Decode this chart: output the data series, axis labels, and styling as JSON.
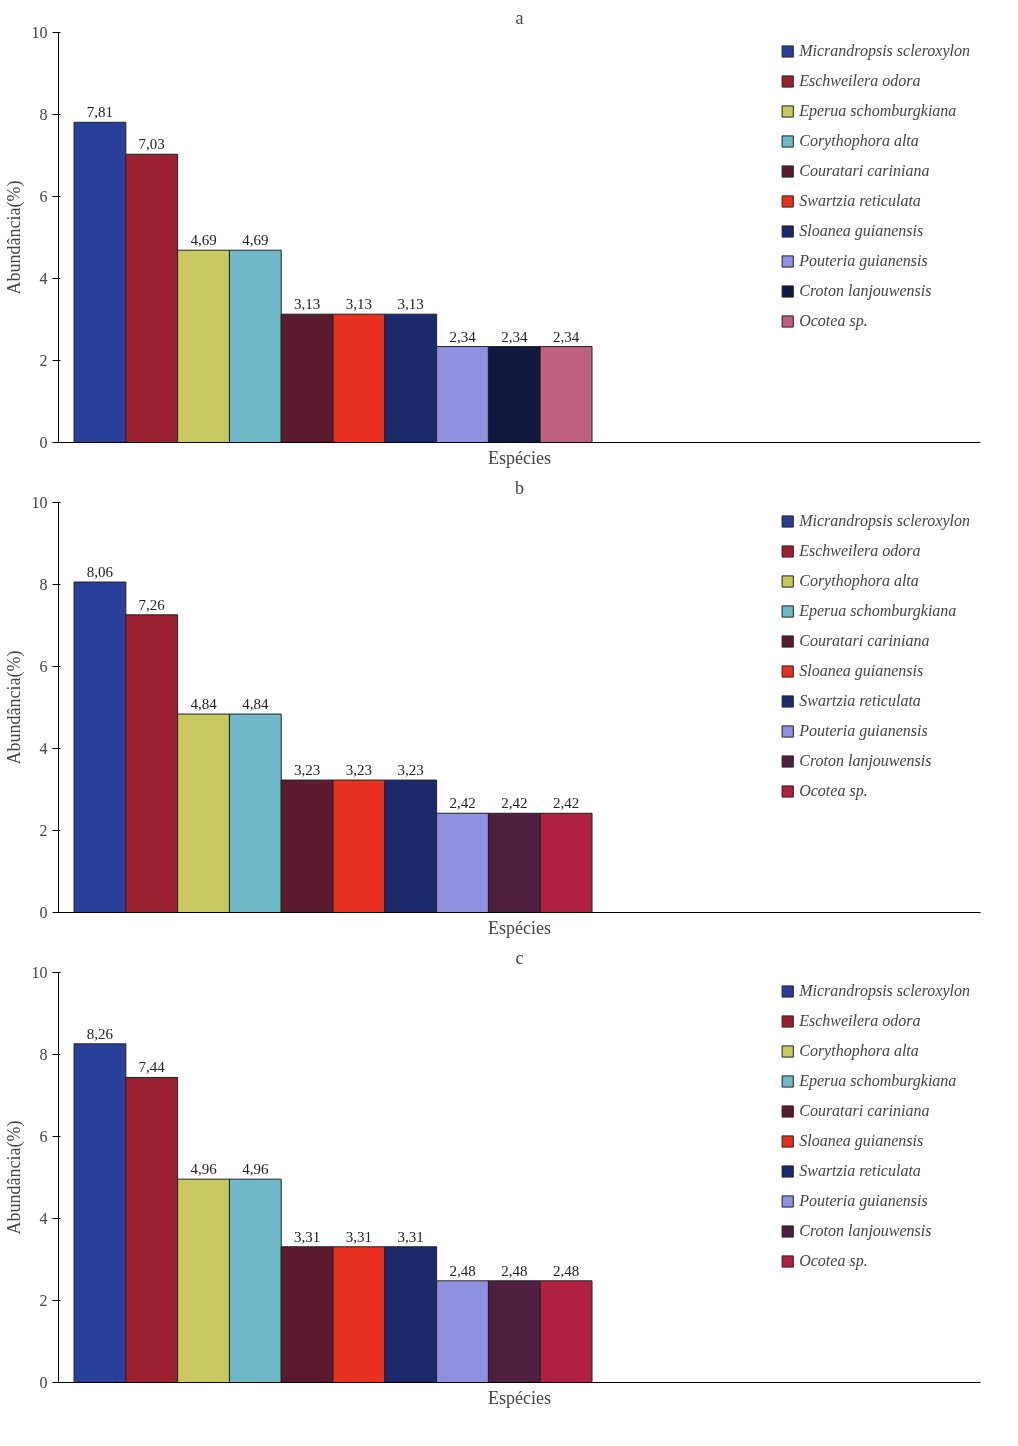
{
  "chart_data": [
    {
      "type": "bar",
      "title": "a",
      "xlabel": "Espécies",
      "ylabel": "Abundância(%)",
      "categories": [
        null
      ],
      "ylim": [
        0,
        10
      ],
      "yticks": [
        0,
        2,
        4,
        6,
        8,
        10
      ],
      "grid": false,
      "legend": "right",
      "series": [
        {
          "name": "Micrandropsis scleroxylon",
          "color": "#2a3f9a",
          "values": [
            7.81
          ],
          "value_labels": [
            "7,81"
          ]
        },
        {
          "name": "Eschweilera odora",
          "color": "#9a2030",
          "values": [
            7.03
          ],
          "value_labels": [
            "7,03"
          ]
        },
        {
          "name": "Eperua schomburgkiana",
          "color": "#c8c860",
          "values": [
            4.69
          ],
          "value_labels": [
            "4,69"
          ]
        },
        {
          "name": "Corythophora alta",
          "color": "#70b8c8",
          "values": [
            4.69
          ],
          "value_labels": [
            "4,69"
          ]
        },
        {
          "name": "Couratari cariniana",
          "color": "#5a1a30",
          "values": [
            3.13
          ],
          "value_labels": [
            "3,13"
          ]
        },
        {
          "name": "Swartzia reticulata",
          "color": "#e83020",
          "values": [
            3.13
          ],
          "value_labels": [
            "3,13"
          ]
        },
        {
          "name": "Sloanea guianensis",
          "color": "#1a2a6a",
          "values": [
            3.13
          ],
          "value_labels": [
            "3,13"
          ]
        },
        {
          "name": "Pouteria guianensis",
          "color": "#9090e0",
          "values": [
            2.34
          ],
          "value_labels": [
            "2,34"
          ]
        },
        {
          "name": "Croton lanjouwensis",
          "color": "#101840",
          "values": [
            2.34
          ],
          "value_labels": [
            "2,34"
          ]
        },
        {
          "name": "Ocotea sp.",
          "color": "#c06080",
          "values": [
            2.34
          ],
          "value_labels": [
            "2,34"
          ]
        }
      ]
    },
    {
      "type": "bar",
      "title": "b",
      "xlabel": "Espécies",
      "ylabel": "Abundância(%)",
      "categories": [
        null
      ],
      "ylim": [
        0,
        10
      ],
      "yticks": [
        0,
        2,
        4,
        6,
        8,
        10
      ],
      "grid": false,
      "legend": "right",
      "series": [
        {
          "name": "Micrandropsis scleroxylon",
          "color": "#2a3f9a",
          "values": [
            8.06
          ],
          "value_labels": [
            "8,06"
          ]
        },
        {
          "name": "Eschweilera odora",
          "color": "#9a2030",
          "values": [
            7.26
          ],
          "value_labels": [
            "7,26"
          ]
        },
        {
          "name": "Corythophora alta",
          "color": "#c8c860",
          "values": [
            4.84
          ],
          "value_labels": [
            "4,84"
          ]
        },
        {
          "name": "Eperua schomburgkiana",
          "color": "#70b8c8",
          "values": [
            4.84
          ],
          "value_labels": [
            "4,84"
          ]
        },
        {
          "name": "Couratari cariniana",
          "color": "#5a1a30",
          "values": [
            3.23
          ],
          "value_labels": [
            "3,23"
          ]
        },
        {
          "name": "Sloanea guianensis",
          "color": "#e83020",
          "values": [
            3.23
          ],
          "value_labels": [
            "3,23"
          ]
        },
        {
          "name": "Swartzia reticulata",
          "color": "#1a2a6a",
          "values": [
            3.23
          ],
          "value_labels": [
            "3,23"
          ]
        },
        {
          "name": "Pouteria guianensis",
          "color": "#9090e0",
          "values": [
            2.42
          ],
          "value_labels": [
            "2,42"
          ]
        },
        {
          "name": "Croton lanjouwensis",
          "color": "#502040",
          "values": [
            2.42
          ],
          "value_labels": [
            "2,42"
          ]
        },
        {
          "name": "Ocotea sp.",
          "color": "#b02040",
          "values": [
            2.42
          ],
          "value_labels": [
            "2,42"
          ]
        }
      ]
    },
    {
      "type": "bar",
      "title": "c",
      "xlabel": "Espécies",
      "ylabel": "Abundância(%)",
      "categories": [
        null
      ],
      "ylim": [
        0,
        10
      ],
      "yticks": [
        0,
        2,
        4,
        6,
        8,
        10
      ],
      "grid": false,
      "legend": "right",
      "series": [
        {
          "name": "Micrandropsis scleroxylon",
          "color": "#2a3f9a",
          "values": [
            8.26
          ],
          "value_labels": [
            "8,26"
          ]
        },
        {
          "name": "Eschweilera odora",
          "color": "#9a2030",
          "values": [
            7.44
          ],
          "value_labels": [
            "7,44"
          ]
        },
        {
          "name": "Corythophora alta",
          "color": "#c8c860",
          "values": [
            4.96
          ],
          "value_labels": [
            "4,96"
          ]
        },
        {
          "name": "Eperua schomburgkiana",
          "color": "#70b8c8",
          "values": [
            4.96
          ],
          "value_labels": [
            "4,96"
          ]
        },
        {
          "name": "Couratari cariniana",
          "color": "#5a1a30",
          "values": [
            3.31
          ],
          "value_labels": [
            "3,31"
          ]
        },
        {
          "name": "Sloanea guianensis",
          "color": "#e83020",
          "values": [
            3.31
          ],
          "value_labels": [
            "3,31"
          ]
        },
        {
          "name": "Swartzia reticulata",
          "color": "#1a2a6a",
          "values": [
            3.31
          ],
          "value_labels": [
            "3,31"
          ]
        },
        {
          "name": "Pouteria guianensis",
          "color": "#9090e0",
          "values": [
            2.48
          ],
          "value_labels": [
            "2,48"
          ]
        },
        {
          "name": "Croton lanjouwensis",
          "color": "#502040",
          "values": [
            2.48
          ],
          "value_labels": [
            "2,48"
          ]
        },
        {
          "name": "Ocotea sp.",
          "color": "#b02040",
          "values": [
            2.48
          ],
          "value_labels": [
            "2,48"
          ]
        }
      ]
    }
  ]
}
